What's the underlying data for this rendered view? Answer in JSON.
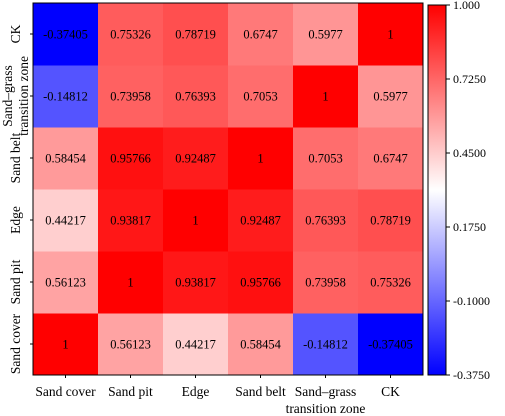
{
  "chart_data": {
    "type": "heatmap",
    "title": "",
    "x_categories": [
      "Sand cover",
      "Sand pit",
      "Edge",
      "Sand belt",
      "Sand–grass transition zone",
      "CK"
    ],
    "y_categories": [
      "Sand cover",
      "Sand pit",
      "Edge",
      "Sand belt",
      "Sand–grass transition zone",
      "CK"
    ],
    "values": [
      [
        1,
        0.56123,
        0.44217,
        0.58454,
        -0.14812,
        -0.37405
      ],
      [
        0.56123,
        1,
        0.93817,
        0.95766,
        0.73958,
        0.75326
      ],
      [
        0.44217,
        0.93817,
        1,
        0.92487,
        0.76393,
        0.78719
      ],
      [
        0.58454,
        0.95766,
        0.92487,
        1,
        0.7053,
        0.6747
      ],
      [
        -0.14812,
        0.73958,
        0.76393,
        0.7053,
        1,
        0.5977
      ],
      [
        -0.37405,
        0.75326,
        0.78719,
        0.6747,
        0.5977,
        1
      ]
    ],
    "value_labels": [
      [
        "1",
        "0.56123",
        "0.44217",
        "0.58454",
        "-0.14812",
        "-0.37405"
      ],
      [
        "0.56123",
        "1",
        "0.93817",
        "0.95766",
        "0.73958",
        "0.75326"
      ],
      [
        "0.44217",
        "0.93817",
        "1",
        "0.92487",
        "0.76393",
        "0.78719"
      ],
      [
        "0.58454",
        "0.95766",
        "0.92487",
        "1",
        "0.7053",
        "0.6747"
      ],
      [
        "-0.14812",
        "0.73958",
        "0.76393",
        "0.7053",
        "1",
        "0.5977"
      ],
      [
        "-0.37405",
        "0.75326",
        "0.78719",
        "0.6747",
        "0.5977",
        "1"
      ]
    ],
    "colorbar": {
      "min": -0.375,
      "max": 1.0,
      "ticks": [
        1.0,
        0.725,
        0.45,
        0.175,
        -0.1,
        -0.375
      ],
      "tick_labels": [
        "1.000",
        "0.7250",
        "0.4500",
        "0.1750",
        "-0.1000",
        "-0.3750"
      ],
      "low_color": "#0000ff",
      "mid_color": "#ffffff",
      "high_color": "#ff0000"
    }
  }
}
